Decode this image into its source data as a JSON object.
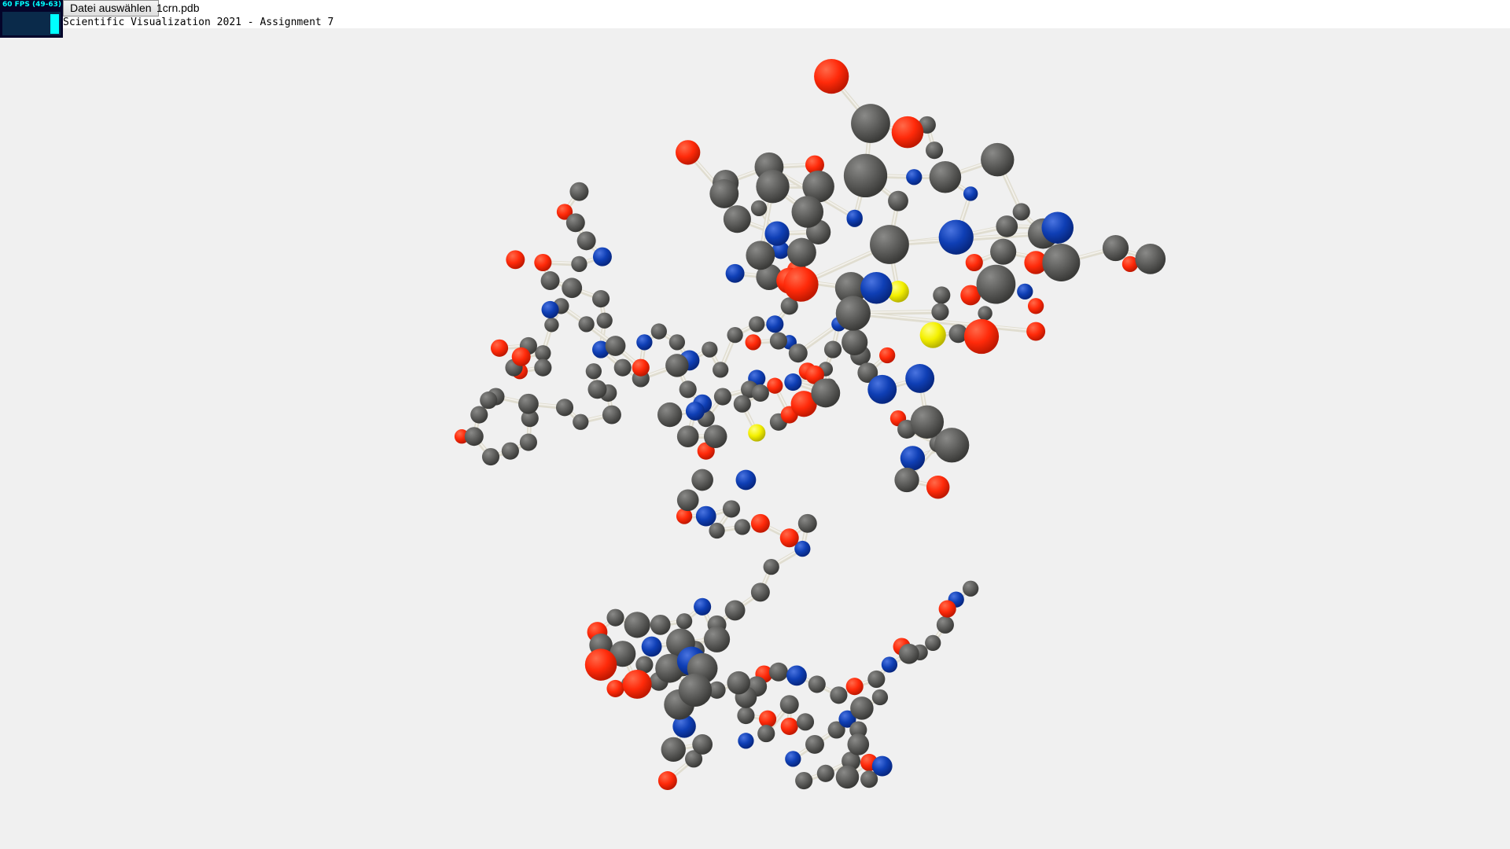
{
  "fps_meter": {
    "text": "60 FPS (49-63)",
    "color": "#00ffff",
    "level": 0.95
  },
  "toolbar": {
    "file_button_label": "Datei auswählen",
    "file_name": "1crn.pdb"
  },
  "page": {
    "subtitle": "Scientific Visualization 2021 - Assignment 7"
  },
  "viewport": {
    "background": "#f0f0f0",
    "bond_color": "#e0ddd0",
    "element_colors": {
      "C": "#5e5e5c",
      "O": "#ff2a0a",
      "N": "#0f3fb5",
      "S": "#f4f000"
    }
  }
}
